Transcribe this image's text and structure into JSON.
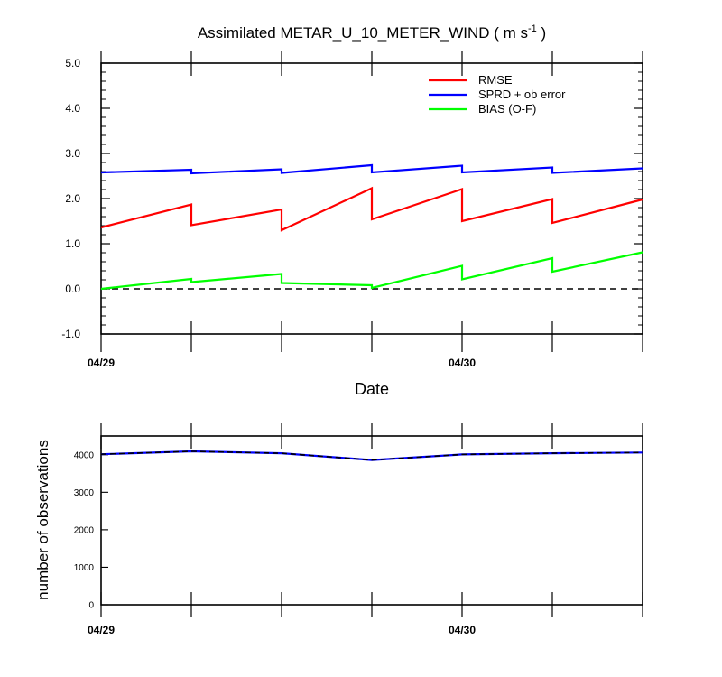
{
  "chart_data": [
    {
      "type": "line",
      "title": "Assimilated METAR_U_10_METER_WIND ( m s",
      "title_superscript": "-1",
      "title_end": " )",
      "xlabel": "Date",
      "ylabel": "",
      "x_tick_labels": [
        "04/29",
        "04/30"
      ],
      "ylim": [
        -1.0,
        5.0
      ],
      "y_ticks": [
        "-1.0",
        "0.0",
        "1.0",
        "2.0",
        "3.0",
        "4.0",
        "5.0"
      ],
      "legend_placement": "top-right",
      "zero_line": "dashed",
      "series": [
        {
          "name": "RMSE",
          "color": "#ff0000",
          "segments": [
            {
              "x": [
                0,
                1
              ],
              "y": [
                1.36,
                1.87
              ]
            },
            {
              "x": [
                1,
                2
              ],
              "y": [
                1.41,
                1.76
              ]
            },
            {
              "x": [
                2,
                3
              ],
              "y": [
                1.3,
                2.23
              ]
            },
            {
              "x": [
                3,
                4
              ],
              "y": [
                1.54,
                2.21
              ]
            },
            {
              "x": [
                4,
                5
              ],
              "y": [
                1.5,
                1.99
              ]
            },
            {
              "x": [
                5,
                6
              ],
              "y": [
                1.46,
                1.98
              ]
            }
          ]
        },
        {
          "name": "SPRD + ob error",
          "color": "#0000ff",
          "segments": [
            {
              "x": [
                0,
                1
              ],
              "y": [
                2.58,
                2.64
              ]
            },
            {
              "x": [
                1,
                2
              ],
              "y": [
                2.56,
                2.65
              ]
            },
            {
              "x": [
                2,
                3
              ],
              "y": [
                2.57,
                2.74
              ]
            },
            {
              "x": [
                3,
                4
              ],
              "y": [
                2.58,
                2.73
              ]
            },
            {
              "x": [
                4,
                5
              ],
              "y": [
                2.58,
                2.69
              ]
            },
            {
              "x": [
                5,
                6
              ],
              "y": [
                2.57,
                2.67
              ]
            }
          ]
        },
        {
          "name": "BIAS (O-F)",
          "color": "#00ff00",
          "segments": [
            {
              "x": [
                0,
                1
              ],
              "y": [
                0.0,
                0.22
              ]
            },
            {
              "x": [
                1,
                2
              ],
              "y": [
                0.15,
                0.33
              ]
            },
            {
              "x": [
                2,
                3
              ],
              "y": [
                0.13,
                0.08
              ]
            },
            {
              "x": [
                3,
                4
              ],
              "y": [
                0.02,
                0.51
              ]
            },
            {
              "x": [
                4,
                5
              ],
              "y": [
                0.21,
                0.68
              ]
            },
            {
              "x": [
                5,
                6
              ],
              "y": [
                0.38,
                0.81
              ]
            }
          ]
        }
      ]
    },
    {
      "type": "line",
      "title": "",
      "xlabel": "",
      "ylabel": "number of observations",
      "x_tick_labels": [
        "04/29",
        "04/30"
      ],
      "ylim": [
        0,
        4500
      ],
      "y_ticks": [
        "0",
        "1000",
        "2000",
        "3000",
        "4000"
      ],
      "series": [
        {
          "color": "#000000",
          "x": [
            0,
            1,
            2,
            3,
            4,
            5,
            6
          ],
          "y": [
            4015,
            4090,
            4040,
            3860,
            4010,
            4040,
            4060
          ]
        }
      ]
    }
  ]
}
